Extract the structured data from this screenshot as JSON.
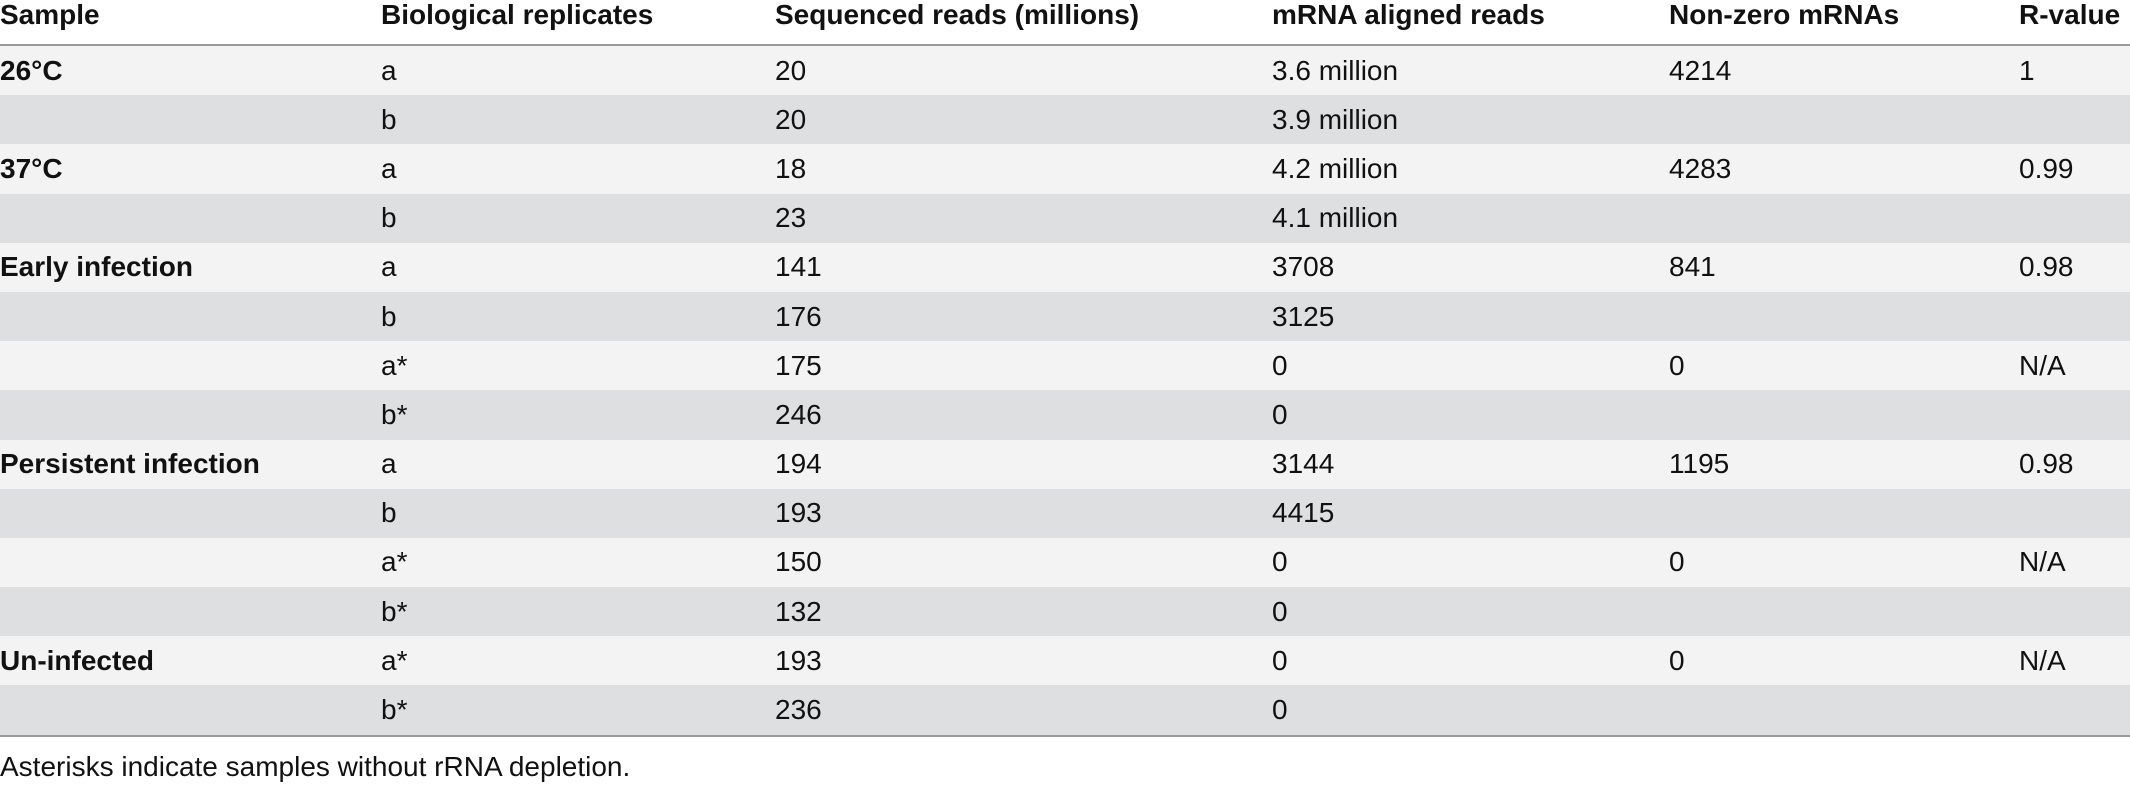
{
  "table": {
    "headers": [
      "Sample",
      "Biological replicates",
      "Sequenced reads (millions)",
      "mRNA aligned reads",
      "Non-zero mRNAs",
      "R-value"
    ],
    "rows": [
      {
        "sample": "26°C",
        "replicate": "a",
        "reads": "20",
        "aligned": "3.6 million",
        "nonzero": "4214",
        "rvalue": "1"
      },
      {
        "sample": "",
        "replicate": "b",
        "reads": "20",
        "aligned": "3.9 million",
        "nonzero": "",
        "rvalue": ""
      },
      {
        "sample": "37°C",
        "replicate": "a",
        "reads": "18",
        "aligned": "4.2 million",
        "nonzero": "4283",
        "rvalue": "0.99"
      },
      {
        "sample": "",
        "replicate": "b",
        "reads": "23",
        "aligned": "4.1 million",
        "nonzero": "",
        "rvalue": ""
      },
      {
        "sample": "Early infection",
        "replicate": "a",
        "reads": "141",
        "aligned": "3708",
        "nonzero": "841",
        "rvalue": "0.98"
      },
      {
        "sample": "",
        "replicate": "b",
        "reads": "176",
        "aligned": "3125",
        "nonzero": "",
        "rvalue": ""
      },
      {
        "sample": "",
        "replicate": "a*",
        "reads": "175",
        "aligned": "0",
        "nonzero": "0",
        "rvalue": "N/A"
      },
      {
        "sample": "",
        "replicate": "b*",
        "reads": "246",
        "aligned": "0",
        "nonzero": "",
        "rvalue": ""
      },
      {
        "sample": "Persistent infection",
        "replicate": "a",
        "reads": "194",
        "aligned": "3144",
        "nonzero": "1195",
        "rvalue": "0.98"
      },
      {
        "sample": "",
        "replicate": "b",
        "reads": "193",
        "aligned": "4415",
        "nonzero": "",
        "rvalue": ""
      },
      {
        "sample": "",
        "replicate": "a*",
        "reads": "150",
        "aligned": "0",
        "nonzero": "0",
        "rvalue": "N/A"
      },
      {
        "sample": "",
        "replicate": "b*",
        "reads": "132",
        "aligned": "0",
        "nonzero": "",
        "rvalue": ""
      },
      {
        "sample": "Un-infected",
        "replicate": "a*",
        "reads": "193",
        "aligned": "0",
        "nonzero": "0",
        "rvalue": "N/A"
      },
      {
        "sample": "",
        "replicate": "b*",
        "reads": "236",
        "aligned": "0",
        "nonzero": "",
        "rvalue": ""
      }
    ]
  },
  "footnote": "Asterisks indicate samples without rRNA depletion.",
  "colors": {
    "row_light": "#f3f3f3",
    "row_dark": "#dedfe0",
    "rule": "#9a9a9a",
    "text": "#111111"
  }
}
